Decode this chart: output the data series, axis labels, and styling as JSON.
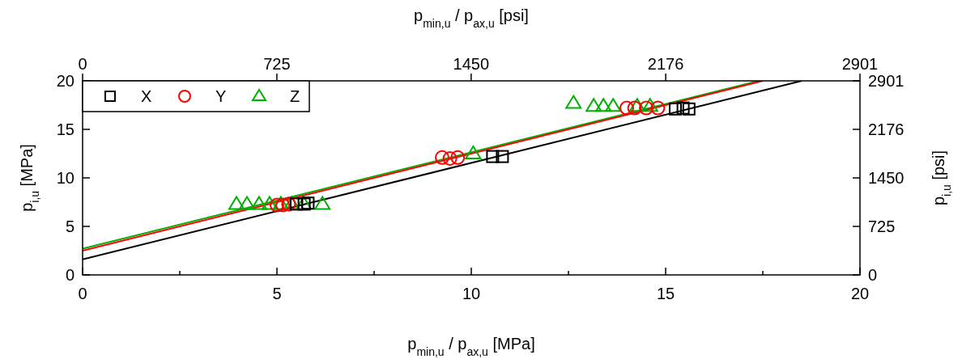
{
  "chart_data": {
    "type": "scatter",
    "xlabel": "p$_{min,u}$ / p$_{ax,u}$ [MPa]",
    "x2label": "p$_{min,u}$ / p$_{ax,u}$ [psi]",
    "ylabel": "p$_{i,u}$ [MPa]",
    "y2label": "p$_{i,u}$ [psi]",
    "xlim": [
      0,
      20
    ],
    "xticks": [
      0,
      {
        "value": 2.5,
        "label": null
      },
      5,
      {
        "value": 7.5,
        "label": null
      },
      10,
      {
        "value": 12.5,
        "label": null
      },
      15,
      {
        "value": 17.5,
        "label": null
      },
      20
    ],
    "ylim": [
      0,
      20
    ],
    "yticks": [
      0,
      5,
      10,
      15,
      20
    ],
    "x2lim": [
      0,
      2901
    ],
    "x2ticks": [
      0,
      725,
      1450,
      2176,
      2901
    ],
    "y2lim": [
      0,
      2901
    ],
    "y2ticks": [
      0,
      725,
      1450,
      2176,
      2901
    ],
    "legend": "top left",
    "grid": false,
    "series": [
      {
        "name": "X",
        "color": "#000000",
        "marker": "square",
        "x": [
          5.5,
          5.7,
          5.8,
          10.55,
          10.8,
          15.25,
          15.45,
          15.6
        ],
        "values": [
          7.3,
          7.3,
          7.4,
          12.2,
          12.2,
          17.1,
          17.2,
          17.1
        ]
      },
      {
        "name": "Y",
        "color": "#ff0000",
        "marker": "circle",
        "x": [
          5.0,
          5.15,
          5.3,
          9.25,
          9.45,
          9.65,
          14.0,
          14.2,
          14.5,
          14.8
        ],
        "values": [
          7.2,
          7.2,
          7.3,
          12.1,
          12.0,
          12.1,
          17.2,
          17.2,
          17.2,
          17.2
        ]
      },
      {
        "name": "Z",
        "color": "#00b000",
        "marker": "triangle",
        "x": [
          3.96,
          4.23,
          4.54,
          4.81,
          5.1,
          5.38,
          5.69,
          6.17,
          10.05,
          12.63,
          13.15,
          13.4,
          13.65,
          14.27,
          14.6
        ],
        "values": [
          7.3,
          7.3,
          7.3,
          7.3,
          7.3,
          7.3,
          7.3,
          7.3,
          12.5,
          17.7,
          17.4,
          17.4,
          17.4,
          17.4,
          17.4
        ]
      },
      {
        "type": "line",
        "color": "#000000",
        "marker": "none",
        "x": [
          0,
          18.5
        ],
        "values": [
          1.6,
          20
        ]
      },
      {
        "type": "line",
        "color": "#ff0000",
        "marker": "none",
        "x": [
          0,
          17.5
        ],
        "values": [
          2.5,
          20
        ]
      },
      {
        "type": "line",
        "color": "#00b000",
        "marker": "none",
        "x": [
          0,
          17.4
        ],
        "values": [
          2.7,
          20
        ]
      }
    ]
  }
}
